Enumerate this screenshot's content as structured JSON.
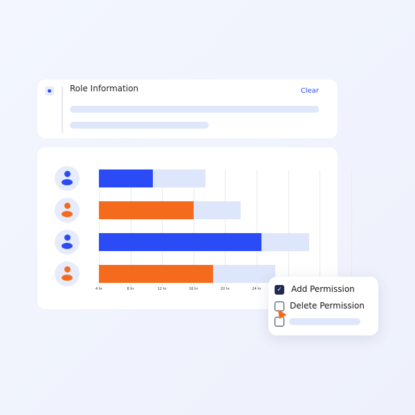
{
  "role_card": {
    "title": "Role Information",
    "clear_label": "Clear"
  },
  "colors": {
    "blue": "#2a4bf5",
    "orange": "#f56b1d",
    "track": "#dde6fb"
  },
  "chart_data": {
    "type": "bar",
    "orientation": "horizontal",
    "stacked": true,
    "x_ticks": [
      "4 hr",
      "8 hr",
      "12 hr",
      "16 hr",
      "20 hr",
      "24 hr"
    ],
    "xlim": [
      4,
      32
    ],
    "rows": [
      {
        "avatar_color": "blue",
        "filled": 10.8,
        "total": 17.5
      },
      {
        "avatar_color": "orange",
        "filled": 16,
        "total": 22
      },
      {
        "avatar_color": "blue",
        "filled": 24.6,
        "total": 30.7
      },
      {
        "avatar_color": "orange",
        "filled": 18.5,
        "total": 26.4
      }
    ]
  },
  "permissions": [
    {
      "label": "Add Permission",
      "checked": true
    },
    {
      "label": "Delete Permission",
      "checked": false
    },
    {
      "label": "",
      "checked": false
    }
  ],
  "icons": {
    "avatar": "user-icon",
    "check": "check-icon",
    "cursor": "cursor-arrow-icon"
  }
}
